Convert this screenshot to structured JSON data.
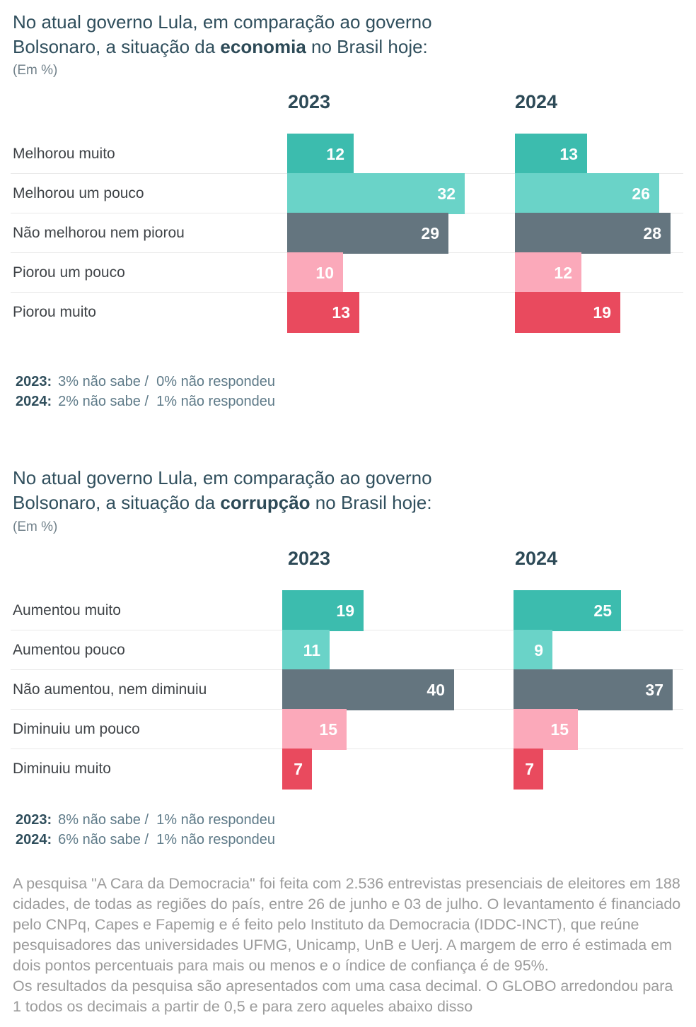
{
  "chart_data": [
    {
      "type": "bar",
      "orientation": "horizontal",
      "title": {
        "prefix": "No atual governo Lula, em comparação ao governo Bolsonaro, a situação da ",
        "bold": "economia",
        "suffix": " no Brasil hoje:"
      },
      "unit_label": "(Em %)",
      "column_headers": [
        "2023",
        "2024"
      ],
      "categories": [
        "Melhorou muito",
        "Melhorou um pouco",
        "Não melhorou nem piorou",
        "Piorou um pouco",
        "Piorou muito"
      ],
      "series": [
        {
          "name": "2023",
          "values": [
            12,
            32,
            29,
            10,
            13
          ]
        },
        {
          "name": "2024",
          "values": [
            13,
            26,
            28,
            12,
            19
          ]
        }
      ],
      "bar_colors": [
        "#3cbcae",
        "#6ad3c8",
        "#64757f",
        "#fba9ba",
        "#e94a5e"
      ],
      "xlim": [
        0,
        32
      ],
      "grid": "row-separators",
      "value_labels": "inside-right",
      "footnotes": [
        {
          "year": "2023:",
          "text": "3% não sabe /  0% não respondeu"
        },
        {
          "year": "2024:",
          "text": "2% não sabe /  1% não respondeu"
        }
      ]
    },
    {
      "type": "bar",
      "orientation": "horizontal",
      "title": {
        "prefix": "No atual governo Lula, em comparação ao governo Bolsonaro, a situação da ",
        "bold": "corrupção",
        "suffix": " no Brasil hoje:"
      },
      "unit_label": "(Em %)",
      "column_headers": [
        "2023",
        "2024"
      ],
      "categories": [
        "Aumentou muito",
        "Aumentou pouco",
        "Não aumentou, nem diminuiu",
        "Diminuiu um pouco",
        "Diminuiu muito"
      ],
      "series": [
        {
          "name": "2023",
          "values": [
            19,
            11,
            40,
            15,
            7
          ]
        },
        {
          "name": "2024",
          "values": [
            25,
            9,
            37,
            15,
            7
          ]
        }
      ],
      "bar_colors": [
        "#3cbcae",
        "#6ad3c8",
        "#64757f",
        "#fba9ba",
        "#e94a5e"
      ],
      "xlim": [
        0,
        40
      ],
      "grid": "row-separators",
      "value_labels": "inside-right",
      "footnotes": [
        {
          "year": "2023:",
          "text": "8% não sabe /  1% não respondeu"
        },
        {
          "year": "2024:",
          "text": "6% não sabe /  1% não respondeu"
        }
      ]
    }
  ],
  "methodology": [
    "A pesquisa \"A Cara da Democracia\" foi feita com 2.536 entrevistas presenciais de eleitores em 188 cidades, de todas as regiões do país, entre 26 de junho e 03 de julho. O levantamento é financiado pelo CNPq, Capes e Fapemig e é feito pelo Instituto da Democracia (IDDC-INCT), que reúne pesquisadores das universidades UFMG, Unicamp, UnB e Uerj. A margem de erro é estimada em dois pontos percentuais para mais ou menos e o índice de confiança é de 95%.",
    "Os resultados da pesquisa são apresentados com uma casa decimal. O GLOBO arredondou para 1 todos os decimais a partir de 0,5 e para zero aqueles abaixo disso"
  ]
}
